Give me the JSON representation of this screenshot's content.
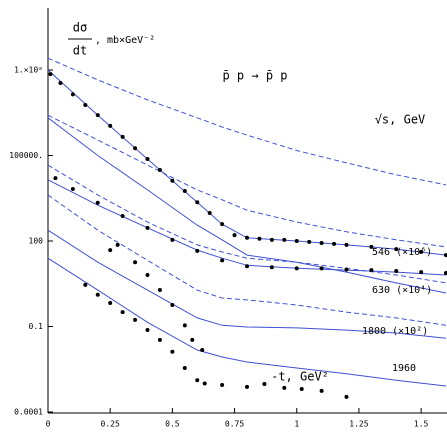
{
  "chart_data": {
    "type": "scatter",
    "title": "p̄ p → p̄ p",
    "annotation": "√s, GeV",
    "xlabel": "-t, GeV²",
    "ylabel": {
      "numerator": "dσ",
      "denominator": "dt",
      "units": ", mb×GeV⁻²"
    },
    "log_y": true,
    "xlim": [
      0,
      1.6
    ],
    "ylim": [
      0.0001,
      10000000000.0
    ],
    "xticks": [
      0,
      0.25,
      0.5,
      0.75,
      1,
      1.25,
      1.5
    ],
    "yticks": [
      0.0001,
      0.1,
      100,
      {
        "value": 100000,
        "label": "100000."
      },
      {
        "value": 100000000,
        "label": "1.×10⁸"
      }
    ],
    "point_color": "#000000",
    "series": [
      {
        "name": "546 (×10⁶)",
        "x": [
          0.01,
          0.05,
          0.1,
          0.15,
          0.2,
          0.25,
          0.3,
          0.35,
          0.4,
          0.45,
          0.5,
          0.55,
          0.6,
          0.65,
          0.7,
          0.75,
          0.8,
          0.85,
          0.9,
          0.95,
          1.0,
          1.05,
          1.1,
          1.15,
          1.2,
          1.3,
          1.4,
          1.5,
          1.6
        ],
        "values": [
          72000000.0,
          35000000.0,
          14000000.0,
          5900000.0,
          2600000.0,
          1100000.0,
          450000.0,
          180000.0,
          75000.0,
          31000.0,
          13000.0,
          5700.0,
          2300.0,
          960,
          390,
          160,
          130,
          120,
          110,
          110,
          100,
          93,
          85,
          79,
          73,
          62,
          52,
          41,
          32
        ]
      },
      {
        "name": "630 (×10⁴)",
        "x": [
          0.03,
          0.1,
          0.2,
          0.3,
          0.4,
          0.5,
          0.6,
          0.7,
          0.8,
          0.9,
          1.0,
          1.1,
          1.2,
          1.3,
          1.4,
          1.5,
          1.6
        ],
        "values": [
          16000.0,
          6700.0,
          2200.0,
          750,
          290,
          110,
          45,
          21,
          13,
          12,
          11,
          11,
          10,
          9.5,
          8.9,
          8.1,
          7.5
        ]
      },
      {
        "name": "1800 (×10²)",
        "x": [
          0.25,
          0.28,
          0.35,
          0.4,
          0.45,
          0.5,
          0.55,
          0.58,
          0.62
        ],
        "values": [
          48,
          73,
          18,
          6.4,
          1.9,
          0.57,
          0.11,
          0.034,
          0.015
        ]
      },
      {
        "name": "1960",
        "x": [
          0.15,
          0.2,
          0.25,
          0.3,
          0.35,
          0.4,
          0.45,
          0.5,
          0.55,
          0.6,
          0.63,
          0.7,
          0.8,
          0.87,
          0.95,
          1.02,
          1.1,
          1.2
        ],
        "values": [
          2.9,
          1.3,
          0.67,
          0.32,
          0.17,
          0.075,
          0.034,
          0.013,
          0.0035,
          0.0013,
          0.001,
          0.00089,
          0.00076,
          0.00096,
          0.0007,
          0.00064,
          0.00055,
          0.00034
        ]
      }
    ],
    "curve_x": [
      0,
      0.2,
      0.4,
      0.6,
      0.7,
      0.8,
      1.0,
      1.2,
      1.4,
      1.6
    ],
    "curve_color": "#3f51d4",
    "curves": [
      {
        "dashed": false,
        "values": [
          100000000.0,
          2600000.0,
          75000.0,
          2300.0,
          390,
          130,
          100,
          73,
          52,
          32
        ]
      },
      {
        "dashed": false,
        "values": [
          2100000.0,
          100000.0,
          6200.0,
          360,
          110,
          32,
          18,
          8.1,
          3.4,
          1.5
        ]
      },
      {
        "dashed": false,
        "values": [
          14000.0,
          1800.0,
          290,
          48,
          25,
          14,
          11,
          9.5,
          8.1,
          6.4
        ]
      },
      {
        "dashed": false,
        "values": [
          240,
          18,
          1.9,
          0.2,
          0.11,
          0.096,
          0.089,
          0.075,
          0.059,
          0.039
        ]
      },
      {
        "dashed": false,
        "values": [
          25,
          1.9,
          0.14,
          0.015,
          0.0085,
          0.0057,
          0.0035,
          0.0022,
          0.0013,
          0.00082
        ]
      },
      {
        "dashed": true,
        "values": [
          260000000.0,
          45000000.0,
          8900000.0,
          2100000.0,
          1000000.0,
          520000.0,
          150000.0,
          55000.0,
          21000.0,
          9300.0
        ]
      },
      {
        "dashed": true,
        "values": [
          2600000.0,
          350000.0,
          46000.0,
          6200.0,
          2800.0,
          1200.0,
          460,
          210,
          110,
          62
        ]
      },
      {
        "dashed": true,
        "values": [
          46000.0,
          4100.0,
          460,
          73,
          41,
          25,
          18,
          11,
          6.4,
          3.4
        ]
      },
      {
        "dashed": true,
        "values": [
          4100.0,
          240,
          21,
          1.9,
          1.0,
          0.86,
          0.57,
          0.32,
          0.2,
          0.11
        ]
      }
    ]
  }
}
